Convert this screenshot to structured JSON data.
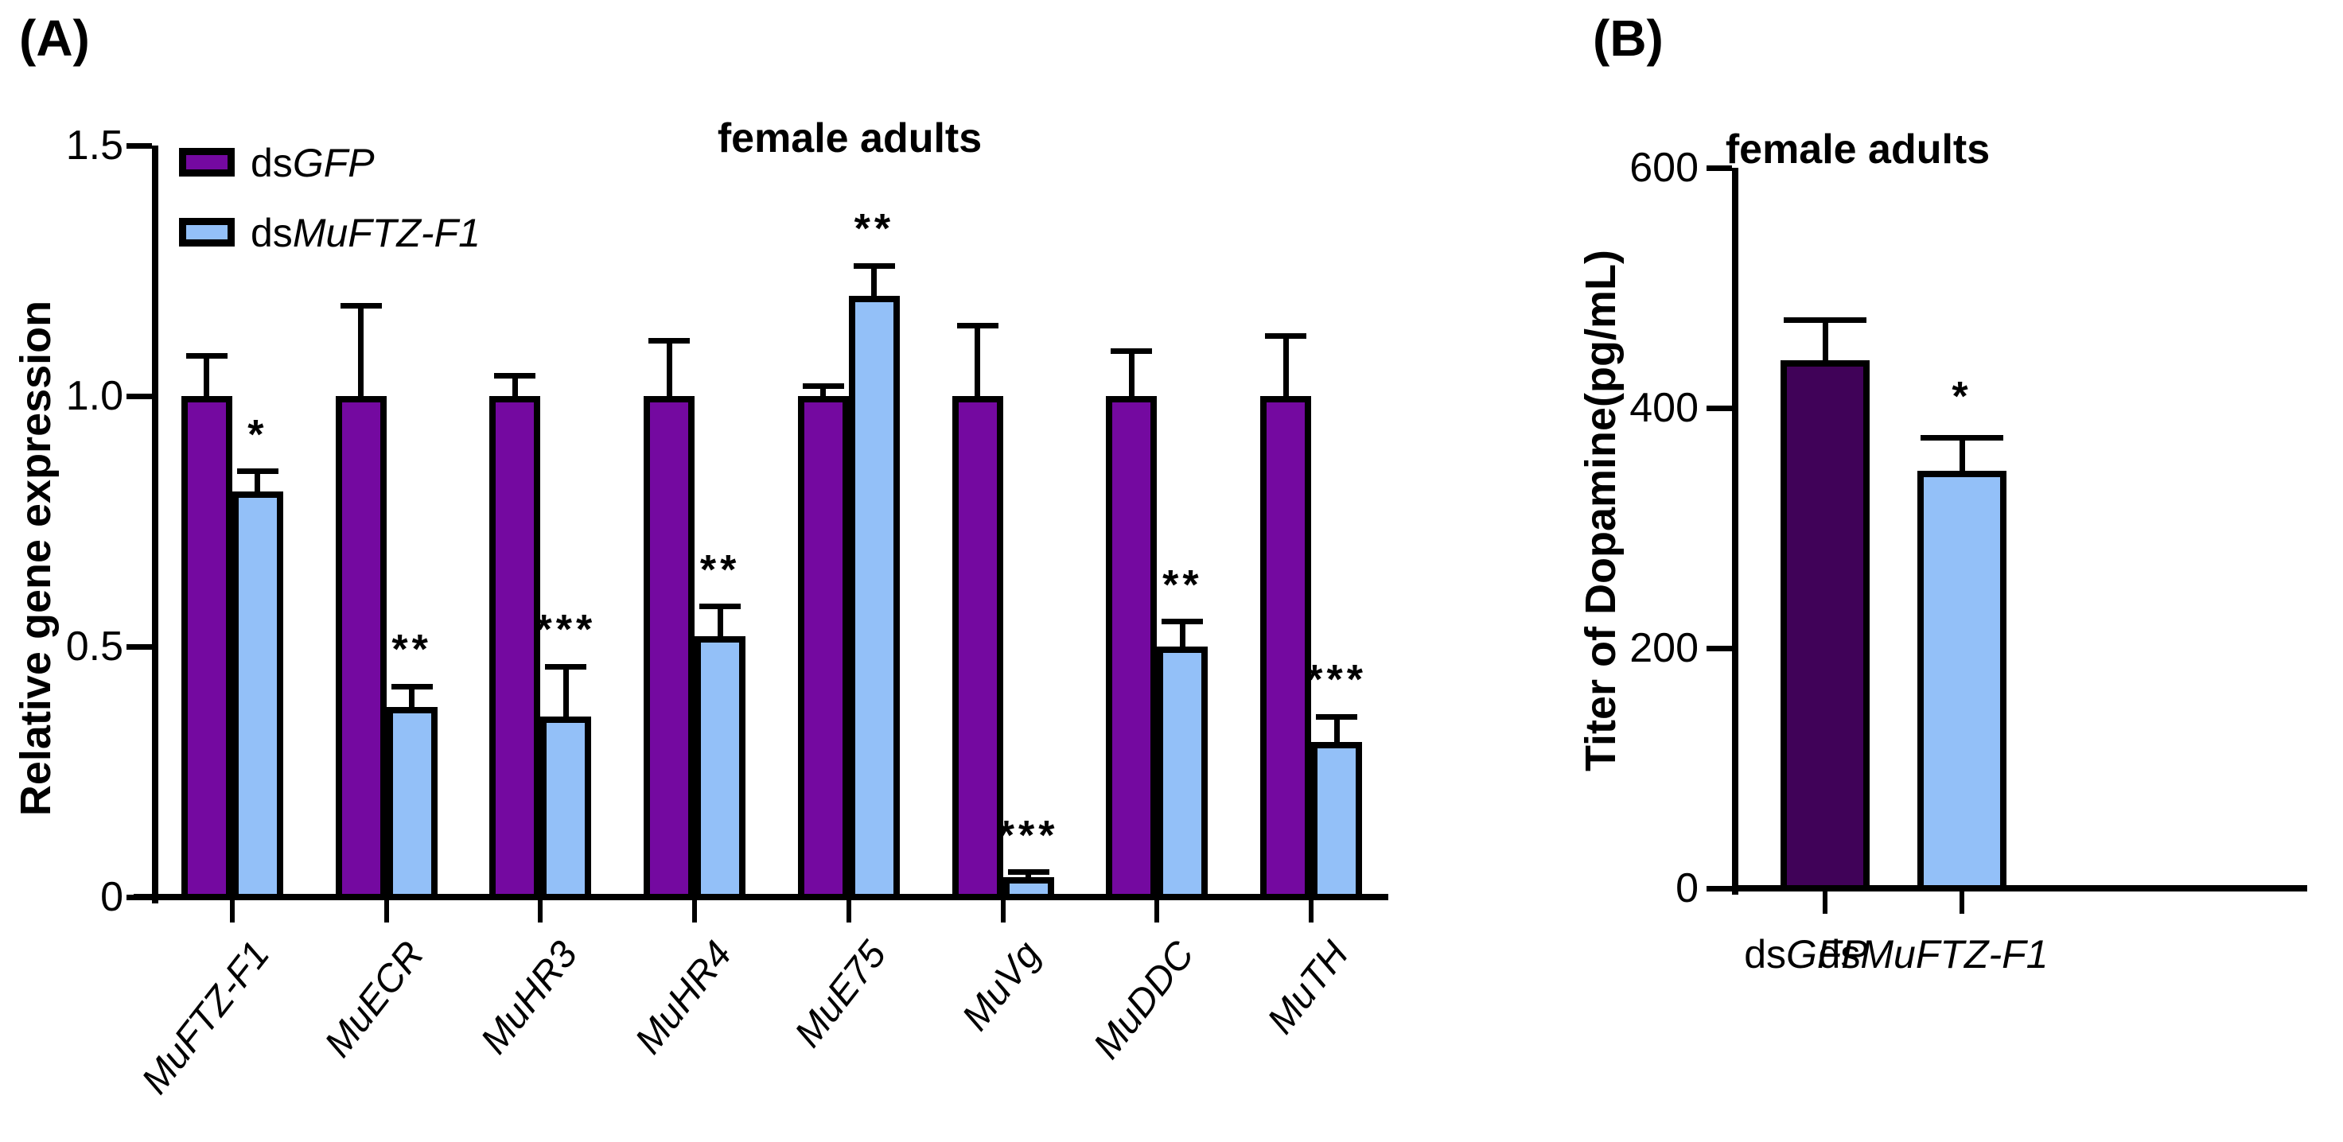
{
  "figure": {
    "panel_a_label": "(A)",
    "panel_b_label": "(B)"
  },
  "colors": {
    "panel_a_purple": "#7409A0",
    "panel_b_purple": "#400258",
    "light_blue": "#93C0F8",
    "stroke": "#000000"
  },
  "chart_data": [
    {
      "id": "A",
      "type": "bar",
      "title": "female adults",
      "ylabel": "Relative gene expression",
      "xlabel": "",
      "ylim": [
        0,
        1.5
      ],
      "yticks": [
        "0",
        "0.5",
        "1.0",
        "1.5"
      ],
      "ytick_values": [
        0,
        0.5,
        1.0,
        1.5
      ],
      "grid": false,
      "legend_position": "top-left",
      "categories": [
        "MuFTZ-F1",
        "MuECR",
        "MuHR3",
        "MuHR4",
        "MuE75",
        "MuVg",
        "MuDDC",
        "MuTH"
      ],
      "legend": [
        {
          "prefix": "ds",
          "italic": "GFP",
          "color": "#7409A0"
        },
        {
          "prefix": "ds",
          "italic": "MuFTZ-F1",
          "color": "#93C0F8"
        }
      ],
      "series": [
        {
          "name": "dsGFP",
          "color": "#7409A0",
          "values": [
            1.0,
            1.0,
            1.0,
            1.0,
            1.0,
            1.0,
            1.0,
            1.0
          ],
          "errors": [
            0.08,
            0.18,
            0.04,
            0.11,
            0.02,
            0.14,
            0.09,
            0.12
          ],
          "significance": [
            "",
            "",
            "",
            "",
            "",
            "",
            "",
            ""
          ]
        },
        {
          "name": "dsMuFTZ-F1",
          "color": "#93C0F8",
          "values": [
            0.81,
            0.38,
            0.36,
            0.52,
            1.2,
            0.04,
            0.5,
            0.31
          ],
          "errors": [
            0.04,
            0.04,
            0.1,
            0.06,
            0.06,
            0.01,
            0.05,
            0.05
          ],
          "significance": [
            "*",
            "**",
            "***",
            "**",
            "**",
            "***",
            "**",
            "***"
          ]
        }
      ]
    },
    {
      "id": "B",
      "type": "bar",
      "title": "female adults",
      "ylabel": "Titer of Dopamine(pg/mL)",
      "xlabel": "",
      "ylim": [
        0,
        600
      ],
      "yticks": [
        "0",
        "200",
        "400",
        "600"
      ],
      "ytick_values": [
        0,
        200,
        400,
        600
      ],
      "grid": false,
      "categories": [
        {
          "prefix": "ds",
          "italic": "GFP"
        },
        {
          "prefix": "ds",
          "italic": "MuFTZ-F1"
        }
      ],
      "series": [
        {
          "name": "Titer of Dopamine",
          "colors": [
            "#400258",
            "#93C0F8"
          ],
          "values": [
            440,
            348
          ],
          "errors": [
            33,
            27
          ],
          "significance": [
            "",
            "*"
          ]
        }
      ]
    }
  ]
}
